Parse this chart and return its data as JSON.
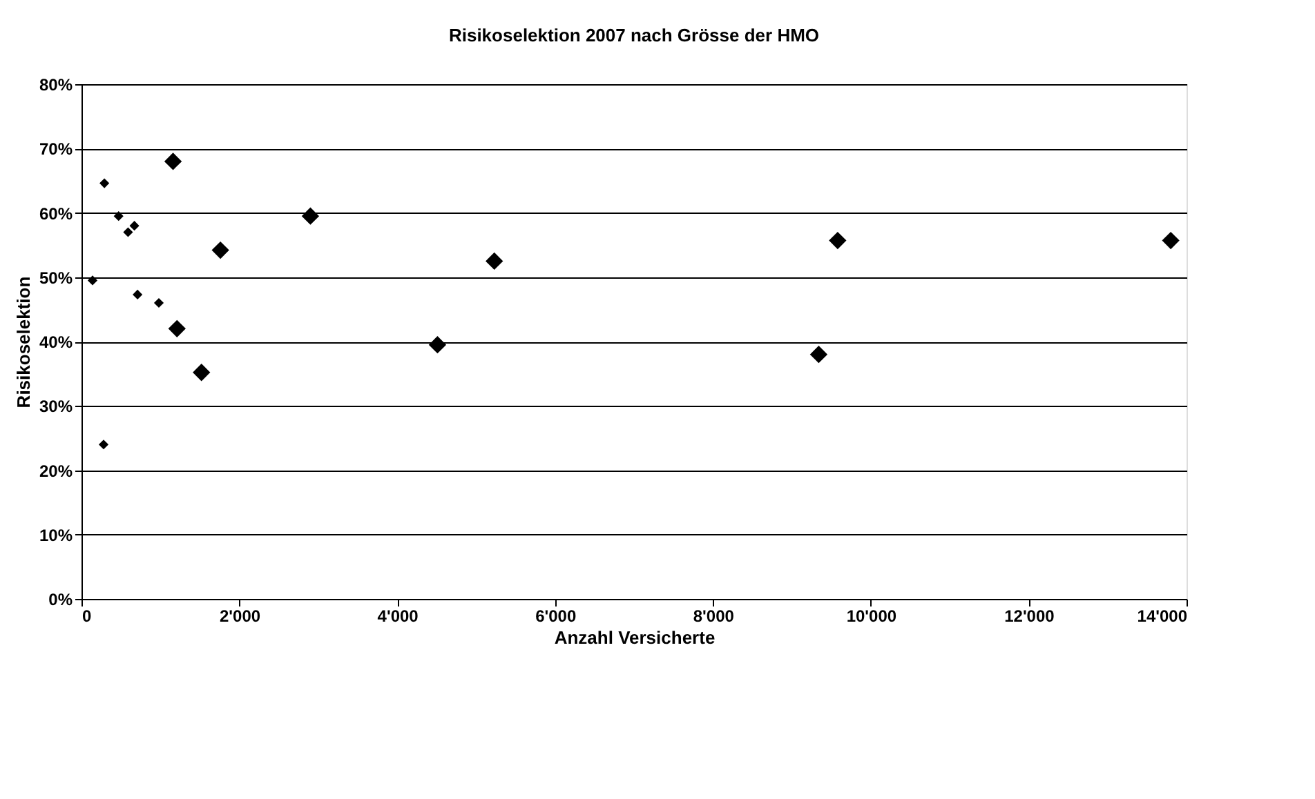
{
  "chart_data": {
    "type": "scatter",
    "title": "Risikoselektion 2007 nach Grösse der HMO",
    "xlabel": "Anzahl Versicherte",
    "ylabel": "Risikoselektion",
    "series": [
      {
        "color": "#000000",
        "x": [
          140,
          290,
          470,
          590,
          670,
          710,
          980,
          280
        ],
        "values": [
          49.5,
          64.6,
          59.5,
          57,
          58,
          47.3,
          46,
          24
        ]
      },
      {
        "color": "#000000",
        "x": [
          1160,
          1210,
          1520,
          1760,
          2900,
          4510,
          5230,
          9340,
          9580,
          13800
        ],
        "values": [
          68,
          42,
          35.2,
          54.2,
          59.5,
          39.5,
          52.5,
          38,
          55.7,
          55.7
        ]
      }
    ],
    "xlim": [
      0,
      14000
    ],
    "xticks": [
      0,
      {
        "value": 2000,
        "label": "2'000"
      },
      {
        "value": 4000,
        "label": "4'000"
      },
      {
        "value": 6000,
        "label": "6'000"
      },
      {
        "value": 8000,
        "label": "8'000"
      },
      {
        "value": 10000,
        "label": "10'000"
      },
      {
        "value": 12000,
        "label": "12'000"
      },
      {
        "value": 14000,
        "label": "14'000"
      }
    ],
    "ylim": [
      0,
      80
    ],
    "yticks": [
      {
        "value": 0,
        "label": "0%"
      },
      {
        "value": 10,
        "label": "10%"
      },
      {
        "value": 20,
        "label": "20%"
      },
      {
        "value": 30,
        "label": "30%"
      },
      {
        "value": 40,
        "label": "40%"
      },
      {
        "value": 50,
        "label": "50%"
      },
      {
        "value": 60,
        "label": "60%"
      },
      {
        "value": 70,
        "label": "70%"
      },
      {
        "value": 80,
        "label": "80%"
      }
    ],
    "grid": "y",
    "marker": "diamond"
  }
}
